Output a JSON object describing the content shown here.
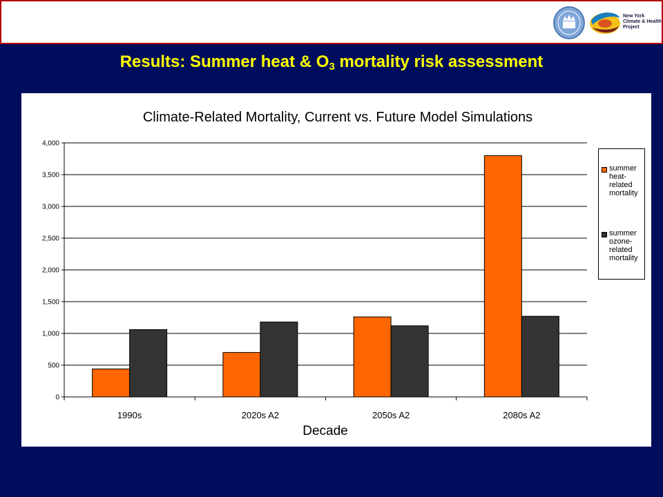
{
  "header": {
    "logo_text_lines": [
      "New York",
      "Climate & Health",
      "Project"
    ]
  },
  "slide": {
    "title_before": "Results: Summer heat & O",
    "title_sub": "3",
    "title_after": " mortality risk assessment"
  },
  "chart_data": {
    "type": "bar",
    "title": "Climate-Related Mortality, Current vs. Future Model Simulations",
    "xlabel": "Decade",
    "ylabel": "",
    "categories": [
      "1990s",
      "2020s A2",
      "2050s A2",
      "2080s A2"
    ],
    "series": [
      {
        "name": "summer heat-related mortality",
        "legend_lines": [
          "summer",
          "heat-",
          "related",
          "mortality"
        ],
        "color": "#ff6600",
        "values": [
          440,
          700,
          1260,
          3800
        ]
      },
      {
        "name": "summer ozone-related mortality",
        "legend_lines": [
          "summer",
          "ozone-",
          "related",
          "mortality"
        ],
        "color": "#333333",
        "values": [
          1060,
          1180,
          1120,
          1270
        ]
      }
    ],
    "ylim": [
      0,
      4000
    ],
    "yticks": [
      0,
      500,
      1000,
      1500,
      2000,
      2500,
      3000,
      3500,
      4000
    ],
    "ytick_labels": [
      "0",
      "500",
      "1,000",
      "1,500",
      "2,000",
      "2,500",
      "3,000",
      "3,500",
      "4,000"
    ],
    "grid": true,
    "legend_position": "right"
  }
}
